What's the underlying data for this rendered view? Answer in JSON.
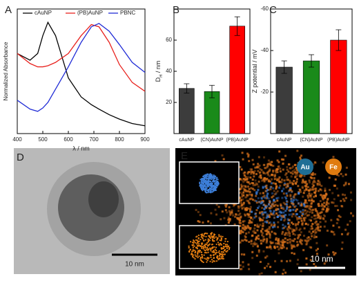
{
  "chart_data": [
    {
      "type": "line",
      "label": "A",
      "xlabel": "λ / nm",
      "ylabel": "Normalized Absorbance",
      "x": [
        400,
        450,
        480,
        500,
        520,
        550,
        600,
        650,
        690,
        720,
        760,
        800,
        850,
        900
      ],
      "series": [
        {
          "name": "cAuNP",
          "color": "#000000",
          "values": [
            0.72,
            0.66,
            0.72,
            0.88,
            1.0,
            0.88,
            0.5,
            0.33,
            0.26,
            0.22,
            0.17,
            0.13,
            0.09,
            0.07
          ]
        },
        {
          "name": "(PB)AuNP",
          "color": "#e8201c",
          "values": [
            0.72,
            0.63,
            0.6,
            0.6,
            0.61,
            0.64,
            0.72,
            0.88,
            0.98,
            0.96,
            0.82,
            0.62,
            0.46,
            0.38
          ]
        },
        {
          "name": "PBNC",
          "color": "#1f2bd6",
          "values": [
            0.3,
            0.22,
            0.2,
            0.23,
            0.28,
            0.4,
            0.6,
            0.82,
            0.96,
            0.99,
            0.92,
            0.8,
            0.64,
            0.55
          ]
        }
      ],
      "xlim": [
        400,
        900
      ],
      "xticks": [
        400,
        500,
        600,
        700,
        800,
        900
      ],
      "ylim": [
        0,
        1.12
      ],
      "legend": "top"
    },
    {
      "type": "bar",
      "label": "B",
      "ylabel": "D",
      "ylabel_sub": "H",
      "ylabel_rest": " / nm",
      "categories": [
        "cAuNP",
        "(CN)AuNP",
        "(PB)AuNP"
      ],
      "values": [
        29,
        27,
        69
      ],
      "errors": [
        3,
        4,
        6
      ],
      "colors": [
        "#3c3c3c",
        "#1a8a1a",
        "#ff0000"
      ],
      "ylim": [
        0,
        80
      ],
      "yticks": [
        20,
        40,
        60
      ]
    },
    {
      "type": "bar",
      "label": "C",
      "ylabel": "Z potential / mV",
      "categories": [
        "cAuNP",
        "(CN)AuNP",
        "(PB)AuNP"
      ],
      "values": [
        -32,
        -35,
        -45
      ],
      "errors": [
        3,
        3,
        5
      ],
      "colors": [
        "#3c3c3c",
        "#1a8a1a",
        "#ff0000"
      ],
      "ylim": [
        0,
        -60
      ],
      "yticks": [
        -20,
        -40,
        -60
      ]
    }
  ],
  "images": [
    {
      "label": "D",
      "scale_bar": "10 nm"
    },
    {
      "label": "E",
      "scale_bar": "10 nm",
      "elements": [
        "Au",
        "Fe"
      ]
    }
  ]
}
